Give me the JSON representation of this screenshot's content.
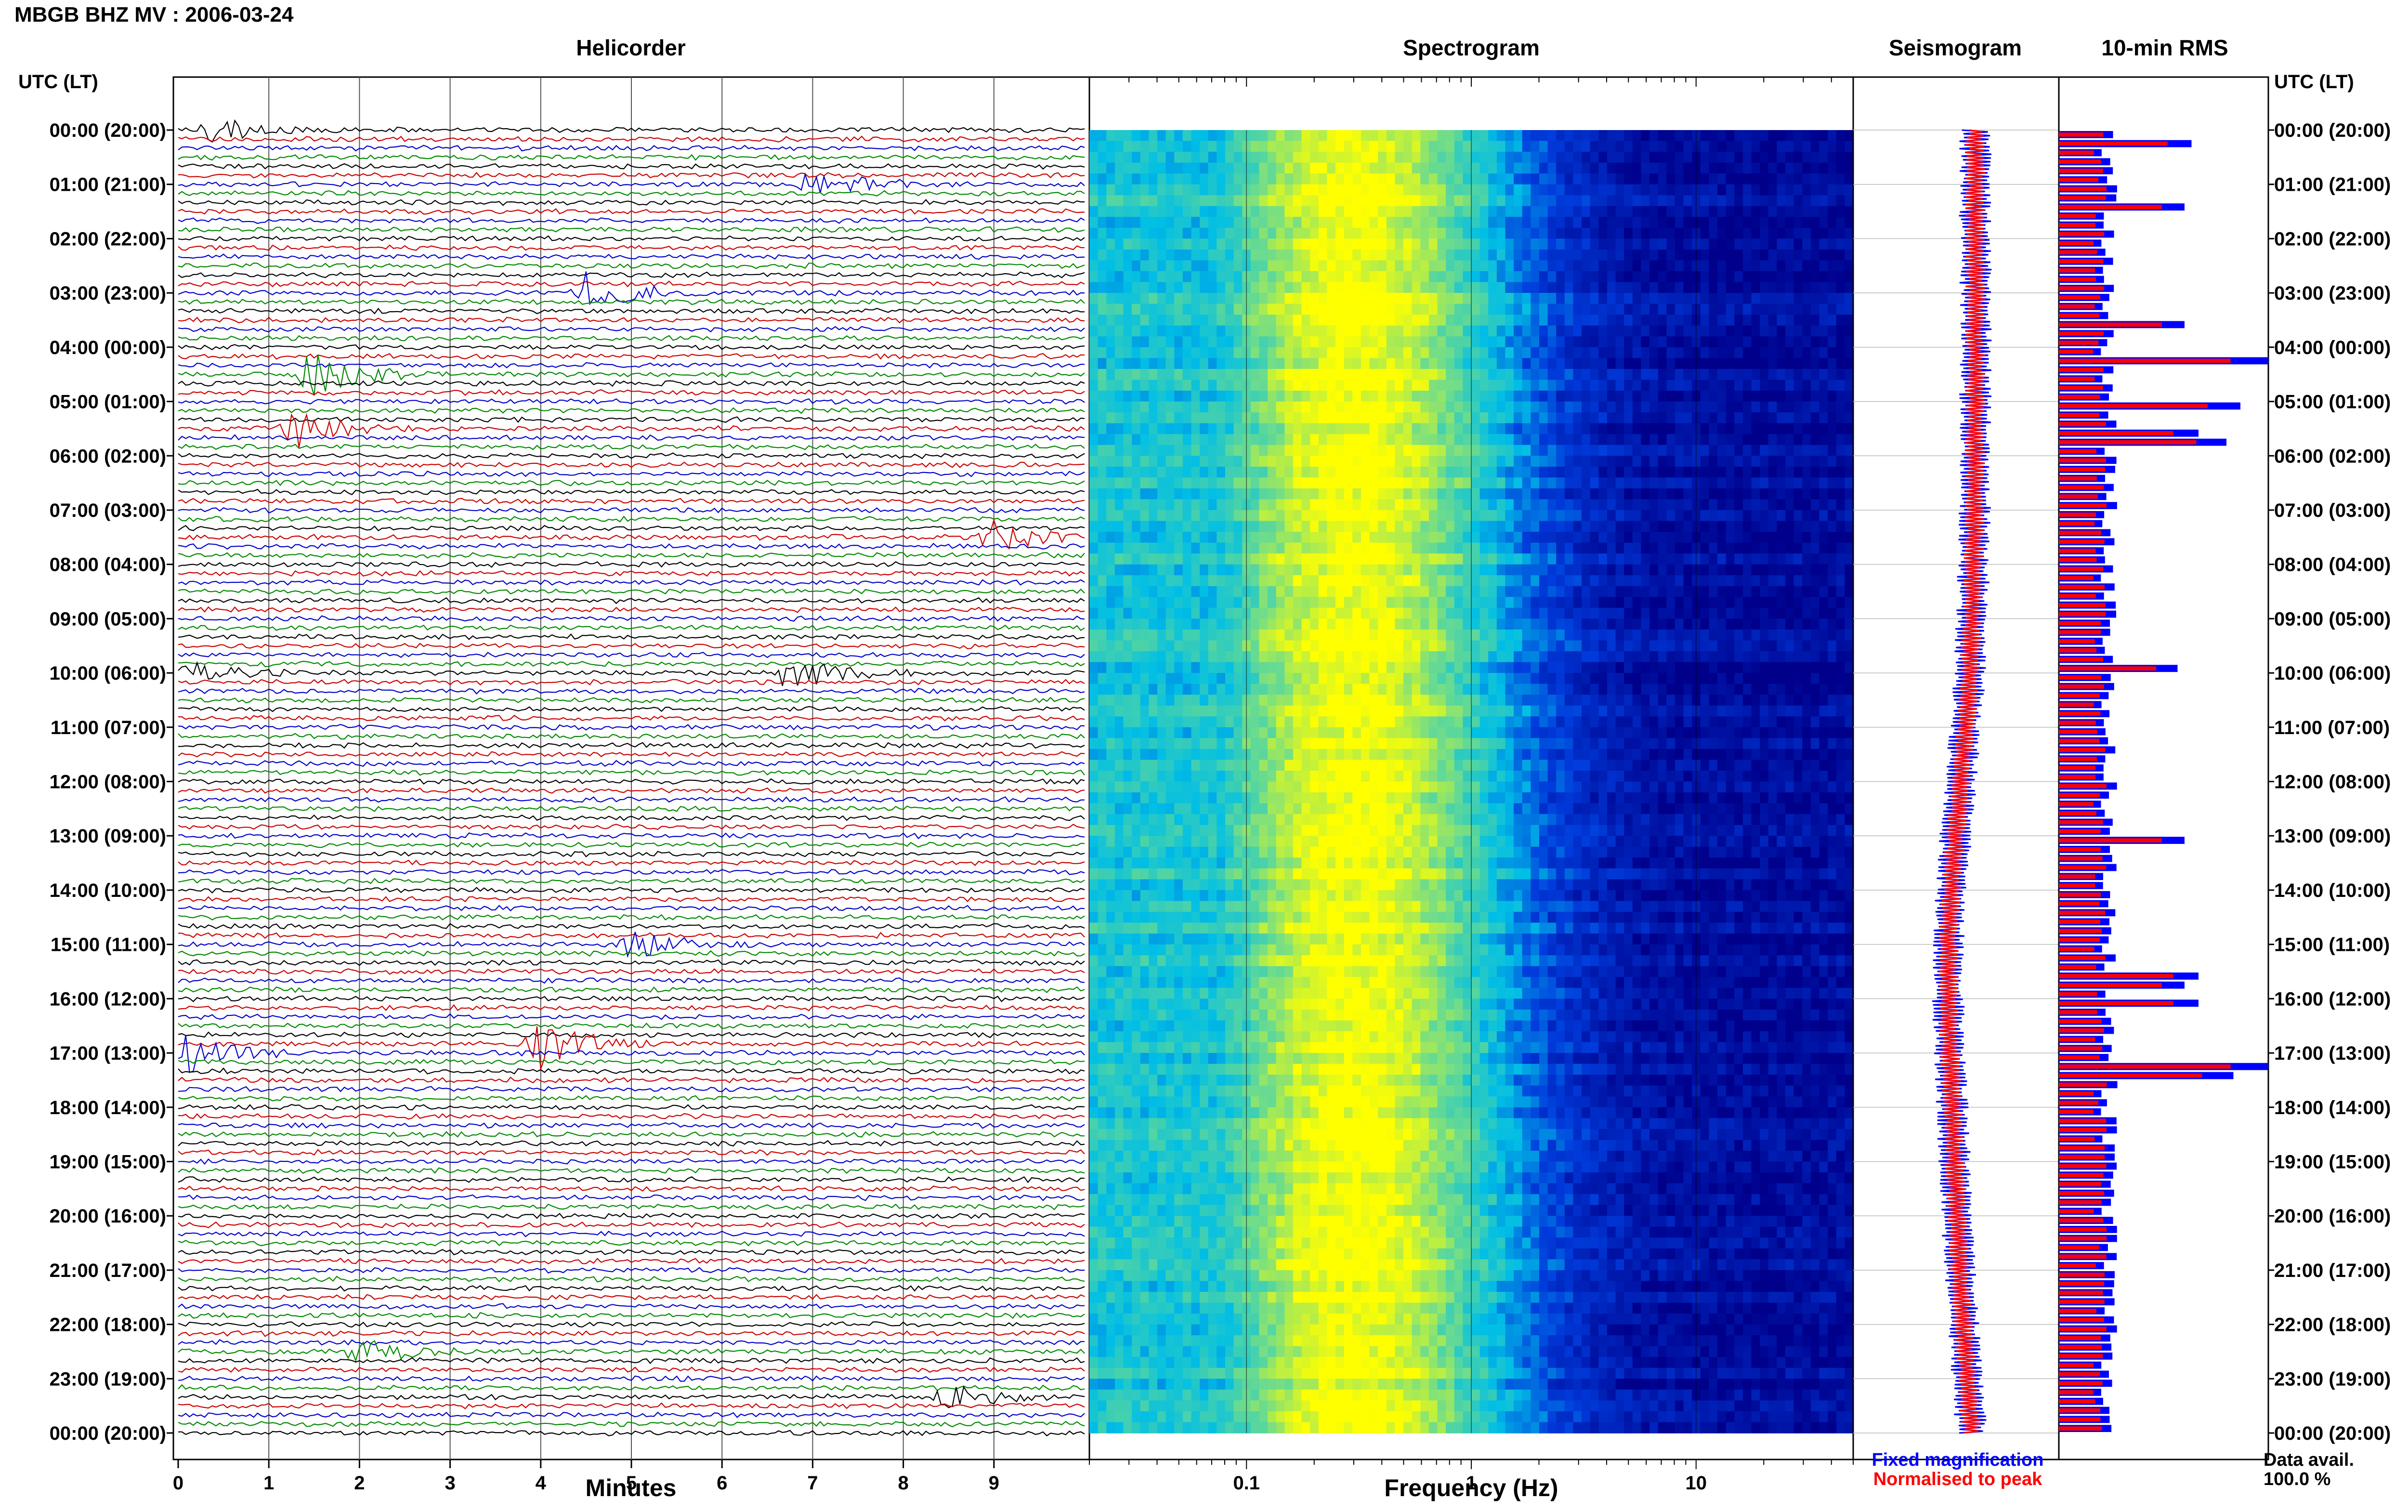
{
  "header": {
    "title": "MBGB BHZ MV : 2006-03-24"
  },
  "colors": {
    "trace_cycle": [
      "#000000",
      "#cc0000",
      "#0000cc",
      "#008800"
    ],
    "fixed_magnification": "#0000ff",
    "normalised_to_peak": "#ff0000",
    "spectrogram_low": "#00008b",
    "spectrogram_high": "#ffff00"
  },
  "footer": {
    "legend_fixed": "Fixed magnification",
    "legend_normalised": "Normalised to peak",
    "avail_label": "Data avail.",
    "avail_value": "100.0 %"
  },
  "chart_data": [
    {
      "type": "line",
      "panel": "helicorder",
      "title": "Helicorder",
      "ylabel": "UTC (LT)",
      "xlabel": "Minutes",
      "xlim": [
        0,
        10
      ],
      "xticks": [
        "0",
        "1",
        "2",
        "3",
        "4",
        "5",
        "6",
        "7",
        "8",
        "9"
      ],
      "yticks": [
        "00:00 (20:00)",
        "01:00 (21:00)",
        "02:00 (22:00)",
        "03:00 (23:00)",
        "04:00 (00:00)",
        "05:00 (01:00)",
        "06:00 (02:00)",
        "07:00 (03:00)",
        "08:00 (04:00)",
        "09:00 (05:00)",
        "10:00 (06:00)",
        "11:00 (07:00)",
        "12:00 (08:00)",
        "13:00 (09:00)",
        "14:00 (10:00)",
        "15:00 (11:00)",
        "16:00 (12:00)",
        "17:00 (13:00)",
        "18:00 (14:00)",
        "19:00 (15:00)",
        "20:00 (16:00)",
        "21:00 (17:00)",
        "22:00 (18:00)",
        "23:00 (19:00)",
        "00:00 (20:00)"
      ],
      "lines_per_hour": 6,
      "events": [
        {
          "hour": 0.0,
          "minute": 0.4,
          "amp": 1.2
        },
        {
          "hour": 1.0,
          "minute": 7.0,
          "amp": 1.6
        },
        {
          "hour": 3.0,
          "minute": 4.5,
          "amp": 2.0
        },
        {
          "hour": 4.5,
          "minute": 1.5,
          "amp": 2.6
        },
        {
          "hour": 5.5,
          "minute": 1.3,
          "amp": 2.0
        },
        {
          "hour": 7.5,
          "minute": 9.0,
          "amp": 1.5
        },
        {
          "hour": 10.0,
          "minute": 6.7,
          "amp": 2.0
        },
        {
          "hour": 10.0,
          "minute": 0.1,
          "amp": 1.2
        },
        {
          "hour": 15.0,
          "minute": 5.0,
          "amp": 1.5
        },
        {
          "hour": 16.8,
          "minute": 4.0,
          "amp": 2.4
        },
        {
          "hour": 17.0,
          "minute": 0.1,
          "amp": 1.8
        },
        {
          "hour": 22.5,
          "minute": 2.0,
          "amp": 1.4
        },
        {
          "hour": 23.3,
          "minute": 8.5,
          "amp": 1.5
        }
      ]
    },
    {
      "type": "heatmap",
      "panel": "spectrogram",
      "title": "Spectrogram",
      "xlabel": "Frequency (Hz)",
      "xscale": "log",
      "xlim": [
        0.02,
        50
      ],
      "xticks": [
        "0.1",
        "1",
        "10"
      ],
      "peak_frequency_hz": 0.3
    },
    {
      "type": "line",
      "panel": "seismogram",
      "title": "Seismogram",
      "series": [
        {
          "name": "Fixed magnification",
          "color": "#0000ff"
        },
        {
          "name": "Normalised to peak",
          "color": "#ff0000"
        }
      ]
    },
    {
      "type": "bar",
      "panel": "rms",
      "title": "10-min RMS",
      "ylabel": "UTC (LT)",
      "series": [
        {
          "name": "Fixed magnification",
          "color": "#0000ff"
        },
        {
          "name": "Normalised to peak",
          "color": "#ff0000"
        }
      ]
    }
  ]
}
